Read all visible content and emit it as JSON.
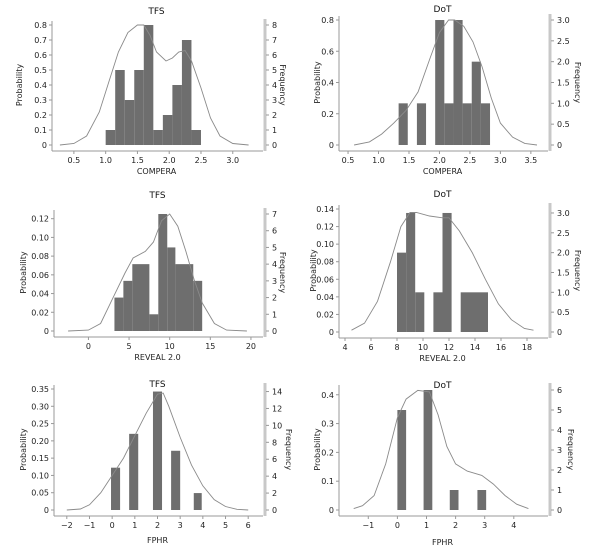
{
  "chart_data": [
    {
      "id": "tfs-compera",
      "type": "bar",
      "title": "TFS",
      "xlabel": "COMPERA",
      "ylabel": "Probability",
      "y2label": "Frequency",
      "xlim": [
        0.25,
        3.35
      ],
      "xticks": [
        0.5,
        1.0,
        1.5,
        2.0,
        2.5,
        3.0
      ],
      "xtick_labels": [
        "0.5",
        "1.0",
        "1.5",
        "2.0",
        "2.5",
        "3.0"
      ],
      "ylim": [
        0,
        0.8
      ],
      "yticks": [
        0,
        0.1,
        0.2,
        0.3,
        0.4,
        0.5,
        0.6,
        0.7,
        0.8
      ],
      "ytick_labels": [
        "0",
        "0.1",
        "0.2",
        "0.3",
        "0.4",
        "0.5",
        "0.6",
        "0.7",
        "0.8"
      ],
      "y2lim": [
        0,
        8
      ],
      "y2ticks": [
        0,
        1,
        2,
        3,
        4,
        5,
        6,
        7,
        8
      ],
      "y2tick_labels": [
        "0",
        "1",
        "2",
        "3",
        "4",
        "5",
        "6",
        "7",
        "8"
      ],
      "bins": [
        {
          "x0": 1.0,
          "x1": 1.15,
          "freq": 1
        },
        {
          "x0": 1.15,
          "x1": 1.3,
          "freq": 5
        },
        {
          "x0": 1.3,
          "x1": 1.45,
          "freq": 3
        },
        {
          "x0": 1.45,
          "x1": 1.6,
          "freq": 5
        },
        {
          "x0": 1.6,
          "x1": 1.75,
          "freq": 8
        },
        {
          "x0": 1.75,
          "x1": 1.9,
          "freq": 1
        },
        {
          "x0": 1.9,
          "x1": 2.05,
          "freq": 2
        },
        {
          "x0": 2.05,
          "x1": 2.2,
          "freq": 4
        },
        {
          "x0": 2.2,
          "x1": 2.35,
          "freq": 7
        },
        {
          "x0": 2.35,
          "x1": 2.5,
          "freq": 1
        }
      ],
      "curve": {
        "x": [
          0.28,
          0.5,
          0.7,
          0.9,
          1.05,
          1.2,
          1.35,
          1.5,
          1.6,
          1.7,
          1.8,
          1.95,
          2.05,
          2.15,
          2.25,
          2.35,
          2.5,
          2.65,
          2.8,
          3.0,
          3.25
        ],
        "y": [
          0.0,
          0.01,
          0.06,
          0.22,
          0.42,
          0.62,
          0.75,
          0.8,
          0.8,
          0.73,
          0.62,
          0.56,
          0.58,
          0.62,
          0.63,
          0.56,
          0.38,
          0.18,
          0.06,
          0.01,
          0.0
        ]
      }
    },
    {
      "id": "dot-compera",
      "type": "bar",
      "title": "DoT",
      "xlabel": "COMPERA",
      "ylabel": "Probability",
      "y2label": "Frequency",
      "xlim": [
        0.45,
        3.65
      ],
      "xticks": [
        0.5,
        1.0,
        1.5,
        2.0,
        2.5,
        3.0,
        3.5
      ],
      "xtick_labels": [
        "0.5",
        "1.0",
        "1.5",
        "2.0",
        "2.5",
        "3.0",
        "3.5"
      ],
      "ylim": [
        0,
        0.8
      ],
      "yticks": [
        0,
        0.2,
        0.4,
        0.6,
        0.8
      ],
      "ytick_labels": [
        "0",
        "0.2",
        "0.4",
        "0.6",
        "0.8"
      ],
      "y2lim": [
        0,
        3.0
      ],
      "y2ticks": [
        0,
        0.5,
        1.0,
        1.5,
        2.0,
        2.5,
        3.0
      ],
      "y2tick_labels": [
        "0",
        "0.5",
        "1.0",
        "1.5",
        "2.0",
        "2.5",
        "3.0"
      ],
      "bins": [
        {
          "x0": 1.33,
          "x1": 1.48,
          "freq": 1
        },
        {
          "x0": 1.63,
          "x1": 1.78,
          "freq": 1
        },
        {
          "x0": 1.93,
          "x1": 2.08,
          "freq": 3
        },
        {
          "x0": 2.08,
          "x1": 2.23,
          "freq": 1
        },
        {
          "x0": 2.23,
          "x1": 2.38,
          "freq": 3
        },
        {
          "x0": 2.38,
          "x1": 2.53,
          "freq": 1
        },
        {
          "x0": 2.53,
          "x1": 2.68,
          "freq": 2
        },
        {
          "x0": 2.68,
          "x1": 2.83,
          "freq": 1
        }
      ],
      "curve": {
        "x": [
          0.6,
          0.85,
          1.05,
          1.25,
          1.45,
          1.65,
          1.85,
          2.0,
          2.15,
          2.25,
          2.4,
          2.55,
          2.7,
          2.85,
          3.0,
          3.2,
          3.4,
          3.6
        ],
        "y": [
          0.0,
          0.02,
          0.07,
          0.14,
          0.22,
          0.34,
          0.56,
          0.72,
          0.8,
          0.8,
          0.76,
          0.66,
          0.5,
          0.3,
          0.14,
          0.05,
          0.01,
          0.0
        ]
      }
    },
    {
      "id": "tfs-reveal",
      "type": "bar",
      "title": "TFS",
      "xlabel": "REVEAL 2.0",
      "ylabel": "Probability",
      "y2label": "Frequency",
      "xlim": [
        -3.5,
        20.5
      ],
      "xticks": [
        0,
        5,
        10,
        15,
        20
      ],
      "xtick_labels": [
        "0",
        "5",
        "10",
        "15",
        "20"
      ],
      "ylim": [
        0,
        0.125
      ],
      "yticks": [
        0,
        0.02,
        0.04,
        0.06,
        0.08,
        0.1,
        0.12
      ],
      "ytick_labels": [
        "0",
        "0.02",
        "0.04",
        "0.06",
        "0.08",
        "0.10",
        "0.12"
      ],
      "y2lim": [
        0,
        7
      ],
      "y2ticks": [
        0,
        1,
        2,
        3,
        4,
        5,
        6,
        7
      ],
      "y2tick_labels": [
        "0",
        "1",
        "2",
        "3",
        "4",
        "5",
        "6",
        "7"
      ],
      "bins": [
        {
          "x0": 3.2,
          "x1": 4.3,
          "freq": 2
        },
        {
          "x0": 4.3,
          "x1": 5.4,
          "freq": 3
        },
        {
          "x0": 5.4,
          "x1": 7.5,
          "freq": 4
        },
        {
          "x0": 7.5,
          "x1": 8.6,
          "freq": 1
        },
        {
          "x0": 8.6,
          "x1": 9.7,
          "freq": 7
        },
        {
          "x0": 9.7,
          "x1": 10.7,
          "freq": 5
        },
        {
          "x0": 10.7,
          "x1": 12.9,
          "freq": 4
        },
        {
          "x0": 12.9,
          "x1": 14.0,
          "freq": 3
        }
      ],
      "curve": {
        "x": [
          -2.5,
          0,
          1.5,
          3,
          4.5,
          5.5,
          7,
          8,
          9,
          10,
          11,
          12,
          13,
          14,
          15.5,
          17,
          19.5
        ],
        "y": [
          0.0,
          0.001,
          0.008,
          0.035,
          0.062,
          0.078,
          0.085,
          0.095,
          0.118,
          0.125,
          0.112,
          0.085,
          0.055,
          0.03,
          0.008,
          0.001,
          0.0
        ]
      }
    },
    {
      "id": "dot-reveal",
      "type": "bar",
      "title": "DoT",
      "xlabel": "REVEAL 2.0",
      "ylabel": "Probability",
      "y2label": "Frequency",
      "xlim": [
        4,
        19
      ],
      "xticks": [
        4,
        6,
        8,
        10,
        12,
        14,
        16,
        18
      ],
      "xtick_labels": [
        "4",
        "6",
        "8",
        "10",
        "12",
        "14",
        "16",
        "18"
      ],
      "ylim": [
        0,
        0.14
      ],
      "yticks": [
        0,
        0.02,
        0.04,
        0.06,
        0.08,
        0.1,
        0.12,
        0.14
      ],
      "ytick_labels": [
        "0",
        "0.02",
        "0.04",
        "0.06",
        "0.08",
        "0.10",
        "0.12",
        "0.14"
      ],
      "y2lim": [
        0,
        3.1
      ],
      "y2ticks": [
        0,
        0.5,
        1.0,
        1.5,
        2.0,
        2.5,
        3.0
      ],
      "y2tick_labels": [
        "0",
        "0.5",
        "1.0",
        "1.5",
        "2.0",
        "2.5",
        "3.0"
      ],
      "bins": [
        {
          "x0": 8.0,
          "x1": 8.7,
          "freq": 2
        },
        {
          "x0": 8.7,
          "x1": 9.4,
          "freq": 3
        },
        {
          "x0": 9.4,
          "x1": 10.1,
          "freq": 1
        },
        {
          "x0": 10.8,
          "x1": 11.5,
          "freq": 1
        },
        {
          "x0": 11.5,
          "x1": 12.2,
          "freq": 3
        },
        {
          "x0": 12.9,
          "x1": 15.0,
          "freq": 1
        }
      ],
      "curve": {
        "x": [
          4.5,
          5.5,
          6.5,
          7.5,
          8.3,
          9.0,
          9.5,
          10.5,
          11.5,
          12.0,
          12.8,
          13.8,
          14.8,
          15.8,
          16.8,
          17.8,
          18.5
        ],
        "y": [
          0.002,
          0.01,
          0.035,
          0.08,
          0.12,
          0.136,
          0.136,
          0.132,
          0.13,
          0.13,
          0.115,
          0.09,
          0.06,
          0.032,
          0.014,
          0.004,
          0.002
        ]
      }
    },
    {
      "id": "tfs-fphr",
      "type": "bar",
      "title": "TFS",
      "xlabel": "FPHR",
      "ylabel": "Probability",
      "y2label": "Frequency",
      "xlim": [
        -2.3,
        6.3
      ],
      "xticks": [
        -2,
        -1,
        0,
        1,
        2,
        3,
        4,
        5,
        6
      ],
      "xtick_labels": [
        "−2",
        "−1",
        "0",
        "1",
        "2",
        "3",
        "4",
        "5",
        "6"
      ],
      "ylim": [
        0,
        0.35
      ],
      "yticks": [
        0,
        0.05,
        0.1,
        0.15,
        0.2,
        0.25,
        0.3,
        0.35
      ],
      "ytick_labels": [
        "0",
        "0.05",
        "0.10",
        "0.15",
        "0.20",
        "0.25",
        "0.30",
        "0.35"
      ],
      "y2lim": [
        0,
        14.3
      ],
      "y2ticks": [
        0,
        2,
        4,
        6,
        8,
        10,
        12,
        14
      ],
      "y2tick_labels": [
        "0",
        "2",
        "4",
        "6",
        "8",
        "10",
        "12",
        "14"
      ],
      "bins": [
        {
          "x0": -0.05,
          "x1": 0.35,
          "freq": 5
        },
        {
          "x0": 0.75,
          "x1": 1.15,
          "freq": 9
        },
        {
          "x0": 1.8,
          "x1": 2.2,
          "freq": 14
        },
        {
          "x0": 2.6,
          "x1": 3.0,
          "freq": 7
        },
        {
          "x0": 3.6,
          "x1": 3.95,
          "freq": 2
        }
      ],
      "curve": {
        "x": [
          -2,
          -1.4,
          -1,
          -0.5,
          0,
          0.5,
          1,
          1.5,
          2,
          2.25,
          2.5,
          3,
          3.5,
          4,
          4.5,
          5,
          5.5,
          6
        ],
        "y": [
          0.0,
          0.003,
          0.015,
          0.05,
          0.1,
          0.15,
          0.215,
          0.28,
          0.335,
          0.338,
          0.3,
          0.21,
          0.13,
          0.07,
          0.03,
          0.01,
          0.002,
          0.0
        ]
      }
    },
    {
      "id": "dot-fphr",
      "type": "bar",
      "title": "DoT",
      "xlabel": "FPHR",
      "ylabel": "Probability",
      "y2label": "Frequency",
      "xlim": [
        -1.8,
        4.9
      ],
      "xticks": [
        -1,
        0,
        1,
        2,
        3,
        4
      ],
      "xtick_labels": [
        "−1",
        "0",
        "1",
        "2",
        "3",
        "4"
      ],
      "ylim": [
        0,
        0.42
      ],
      "yticks": [
        0,
        0.1,
        0.2,
        0.3,
        0.4
      ],
      "ytick_labels": [
        "0",
        "0.1",
        "0.2",
        "0.3",
        "0.4"
      ],
      "y2lim": [
        0,
        6.05
      ],
      "y2ticks": [
        0,
        1,
        2,
        3,
        4,
        5,
        6
      ],
      "y2tick_labels": [
        "0",
        "1",
        "2",
        "3",
        "4",
        "5",
        "6"
      ],
      "bins": [
        {
          "x0": 0.0,
          "x1": 0.3,
          "freq": 5
        },
        {
          "x0": 0.9,
          "x1": 1.2,
          "freq": 6
        },
        {
          "x0": 1.8,
          "x1": 2.1,
          "freq": 1
        },
        {
          "x0": 2.75,
          "x1": 3.05,
          "freq": 1
        }
      ],
      "curve": {
        "x": [
          -1.5,
          -1.2,
          -0.8,
          -0.4,
          0,
          0.3,
          0.7,
          1.1,
          1.4,
          1.7,
          2.0,
          2.4,
          2.9,
          3.3,
          3.7,
          4.1,
          4.5
        ],
        "y": [
          0.005,
          0.015,
          0.05,
          0.16,
          0.32,
          0.385,
          0.415,
          0.41,
          0.33,
          0.22,
          0.16,
          0.135,
          0.12,
          0.09,
          0.05,
          0.02,
          0.005
        ]
      }
    }
  ]
}
